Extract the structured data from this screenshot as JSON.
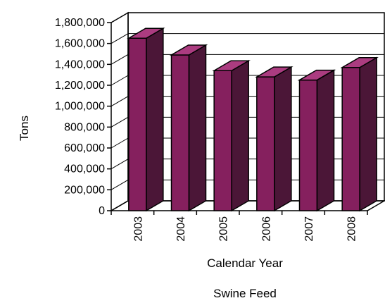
{
  "chart_data": {
    "type": "bar",
    "title": "Swine Feed",
    "xlabel": "Calendar Year",
    "ylabel": "Tons",
    "categories": [
      "2003",
      "2004",
      "2005",
      "2006",
      "2007",
      "2008"
    ],
    "values": [
      1650000,
      1490000,
      1340000,
      1280000,
      1250000,
      1370000
    ],
    "ylim": [
      0,
      1800000
    ],
    "yticks": [
      "0",
      "200,000",
      "400,000",
      "600,000",
      "800,000",
      "1,000,000",
      "1,200,000",
      "1,400,000",
      "1,600,000",
      "1,800,000"
    ],
    "grid": true,
    "legend": "none",
    "colors": {
      "bar_front": "#85205E",
      "bar_side": "#4B1637",
      "bar_top": "#AB3C80",
      "outline": "#000000"
    }
  }
}
